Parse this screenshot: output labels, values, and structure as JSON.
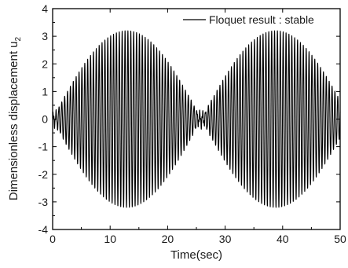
{
  "chart_data": {
    "type": "line",
    "title": "",
    "xlabel": "Time(sec)",
    "ylabel": "Dimensionless displacement u",
    "ylabel_subscript": "2",
    "xlim": [
      0,
      50
    ],
    "ylim": [
      -4,
      4
    ],
    "xticks": [
      "0",
      "10",
      "20",
      "30",
      "40",
      "50"
    ],
    "yticks": [
      "-4",
      "-3",
      "-2",
      "-1",
      "0",
      "1",
      "2",
      "3",
      "4"
    ],
    "grid": false,
    "legend_position": "top-right",
    "series": [
      {
        "name": "Floquet result : stable",
        "color": "#000000",
        "envelope": {
          "peak_amplitude": 3.2,
          "peak_times": [
            12.9,
            38.8
          ],
          "beat_period": 25.9,
          "min_amplitude": 0.25,
          "oscillation_period": 0.5
        }
      }
    ]
  }
}
